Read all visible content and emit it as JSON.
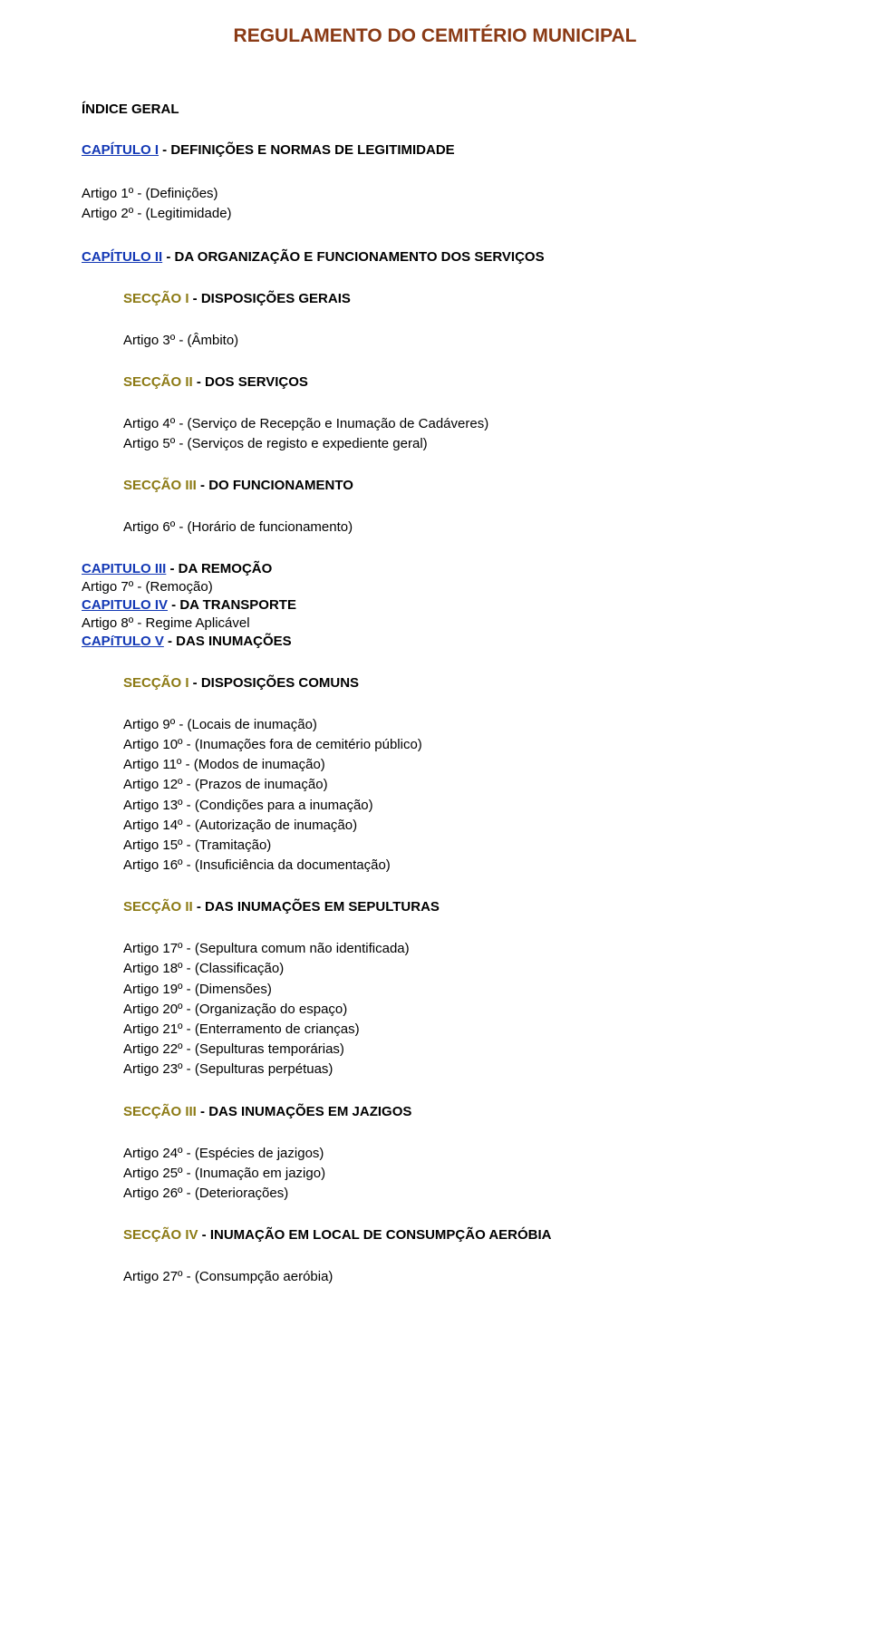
{
  "colors": {
    "title": "#8a3a15",
    "text_black": "#000000",
    "link_blue": "#1338b5",
    "section_olive": "#8c7a14"
  },
  "title": "REGULAMENTO DO CEMITÉRIO MUNICIPAL",
  "index_heading": "ÍNDICE GERAL",
  "chap1": {
    "link": "CAPÍTULO I",
    "rest": " - DEFINIÇÕES E NORMAS DE LEGITIMIDADE"
  },
  "chap1_arts": [
    "Artigo 1º - (Definições)",
    "Artigo 2º - (Legitimidade)"
  ],
  "chap2": {
    "link": "CAPÍTULO II",
    "rest": " - DA ORGANIZAÇÃO E FUNCIONAMENTO DOS SERVIÇOS"
  },
  "sec_i_disp": {
    "label": "SECÇÃO I",
    "rest": " - DISPOSIÇÕES GERAIS"
  },
  "art3": "Artigo 3º - (Âmbito)",
  "sec_ii_serv": {
    "label": "SECÇÃO II",
    "rest": " - DOS SERVIÇOS"
  },
  "sec_ii_arts": [
    "Artigo 4º - (Serviço de Recepção e Inumação de Cadáveres)",
    "Artigo 5º - (Serviços de registo e expediente geral)"
  ],
  "sec_iii_func": {
    "label": "SECÇÃO III",
    "rest": " - DO FUNCIONAMENTO"
  },
  "art6": "Artigo 6º - (Horário de funcionamento)",
  "chap3": {
    "link": "CAPITULO III",
    "rest": " - DA REMOÇÃO"
  },
  "art7": "Artigo 7º - (Remoção)",
  "chap4": {
    "link": "CAPITULO IV",
    "rest": " - DA TRANSPORTE"
  },
  "art8": "Artigo 8º - Regime Aplicável",
  "chap5": {
    "link": "CAPíTULO V",
    "rest": " - DAS INUMAÇÕES"
  },
  "sec_i_comuns": {
    "label": "SECÇÃO I",
    "rest": " - DISPOSIÇÕES COMUNS"
  },
  "sec_i_comuns_arts": [
    "Artigo 9º - (Locais de inumação)",
    "Artigo 10º - (Inumações fora de cemitério público)",
    "Artigo 11º - (Modos de inumação)",
    "Artigo 12º - (Prazos de inumação)",
    "Artigo 13º - (Condições para a inumação)",
    "Artigo 14º - (Autorização de inumação)",
    "Artigo 15º - (Tramitação)",
    "Artigo 16º - (Insuficiência da documentação)"
  ],
  "sec_ii_sep": {
    "label": "SECÇÃO II",
    "rest": " - DAS INUMAÇÕES EM SEPULTURAS"
  },
  "sec_ii_sep_arts": [
    "Artigo 17º - (Sepultura comum não identificada)",
    "Artigo 18º - (Classificação)",
    "Artigo 19º - (Dimensões)",
    "Artigo 20º - (Organização do espaço)",
    "Artigo 21º - (Enterramento de crianças)",
    "Artigo 22º - (Sepulturas temporárias)",
    "Artigo 23º - (Sepulturas perpétuas)"
  ],
  "sec_iii_jaz": {
    "label": "SECÇÃO III",
    "rest": " - DAS INUMAÇÕES EM JAZIGOS"
  },
  "sec_iii_jaz_arts": [
    "Artigo 24º - (Espécies de jazigos)",
    "Artigo 25º - (Inumação em jazigo)",
    "Artigo 26º - (Deteriorações)"
  ],
  "sec_iv_aero": {
    "label": "SECÇÃO IV",
    "rest": " - INUMAÇÃO EM LOCAL DE CONSUMPÇÃO AERÓBIA"
  },
  "art27": "Artigo 27º - (Consumpção aeróbia)"
}
